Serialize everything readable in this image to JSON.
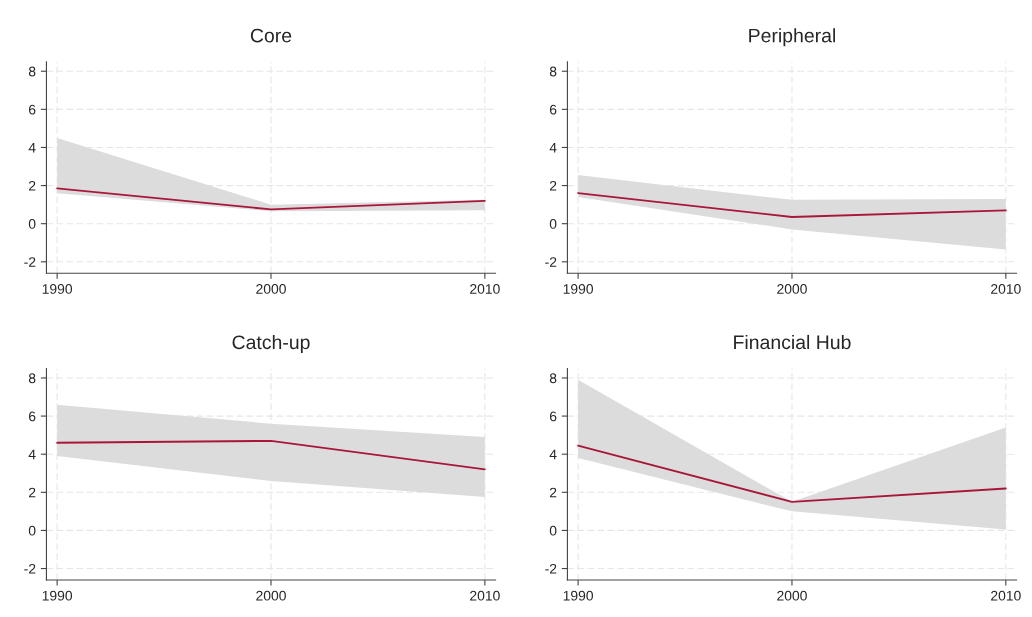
{
  "chart_data": [
    {
      "type": "line",
      "title": "Core",
      "x": [
        1990,
        2000,
        2010
      ],
      "xlim": [
        1989.5,
        2010.5
      ],
      "xticks": [
        1990,
        2000,
        2010
      ],
      "ylim": [
        -2.6,
        8.5
      ],
      "yticks": [
        -2,
        0,
        2,
        4,
        6,
        8
      ],
      "grid": true,
      "series": [
        {
          "color": "#a8173a",
          "values": [
            1.85,
            0.75,
            1.2
          ],
          "lower": [
            1.6,
            0.65,
            0.7
          ],
          "upper": [
            4.5,
            1.0,
            1.25
          ]
        }
      ]
    },
    {
      "type": "line",
      "title": "Peripheral",
      "x": [
        1990,
        2000,
        2010
      ],
      "xlim": [
        1989.5,
        2010.5
      ],
      "xticks": [
        1990,
        2000,
        2010
      ],
      "ylim": [
        -2.6,
        8.5
      ],
      "yticks": [
        -2,
        0,
        2,
        4,
        6,
        8
      ],
      "grid": true,
      "series": [
        {
          "color": "#a8173a",
          "values": [
            1.6,
            0.35,
            0.7
          ],
          "lower": [
            1.4,
            -0.3,
            -1.35
          ],
          "upper": [
            2.55,
            1.25,
            1.3
          ]
        }
      ]
    },
    {
      "type": "line",
      "title": "Catch-up",
      "x": [
        1990,
        2000,
        2010
      ],
      "xlim": [
        1989.5,
        2010.5
      ],
      "xticks": [
        1990,
        2000,
        2010
      ],
      "ylim": [
        -2.6,
        8.5
      ],
      "yticks": [
        -2,
        0,
        2,
        4,
        6,
        8
      ],
      "grid": true,
      "series": [
        {
          "color": "#a8173a",
          "values": [
            4.6,
            4.7,
            3.2
          ],
          "lower": [
            3.9,
            2.6,
            1.75
          ],
          "upper": [
            6.6,
            5.6,
            4.9
          ]
        }
      ]
    },
    {
      "type": "line",
      "title": "Financial Hub",
      "x": [
        1990,
        2000,
        2010
      ],
      "xlim": [
        1989.5,
        2010.5
      ],
      "xticks": [
        1990,
        2000,
        2010
      ],
      "ylim": [
        -2.6,
        8.5
      ],
      "yticks": [
        -2,
        0,
        2,
        4,
        6,
        8
      ],
      "grid": true,
      "series": [
        {
          "color": "#a8173a",
          "values": [
            4.45,
            1.5,
            2.2
          ],
          "lower": [
            3.8,
            1.0,
            0.05
          ],
          "upper": [
            7.9,
            1.5,
            5.4
          ]
        }
      ]
    }
  ]
}
